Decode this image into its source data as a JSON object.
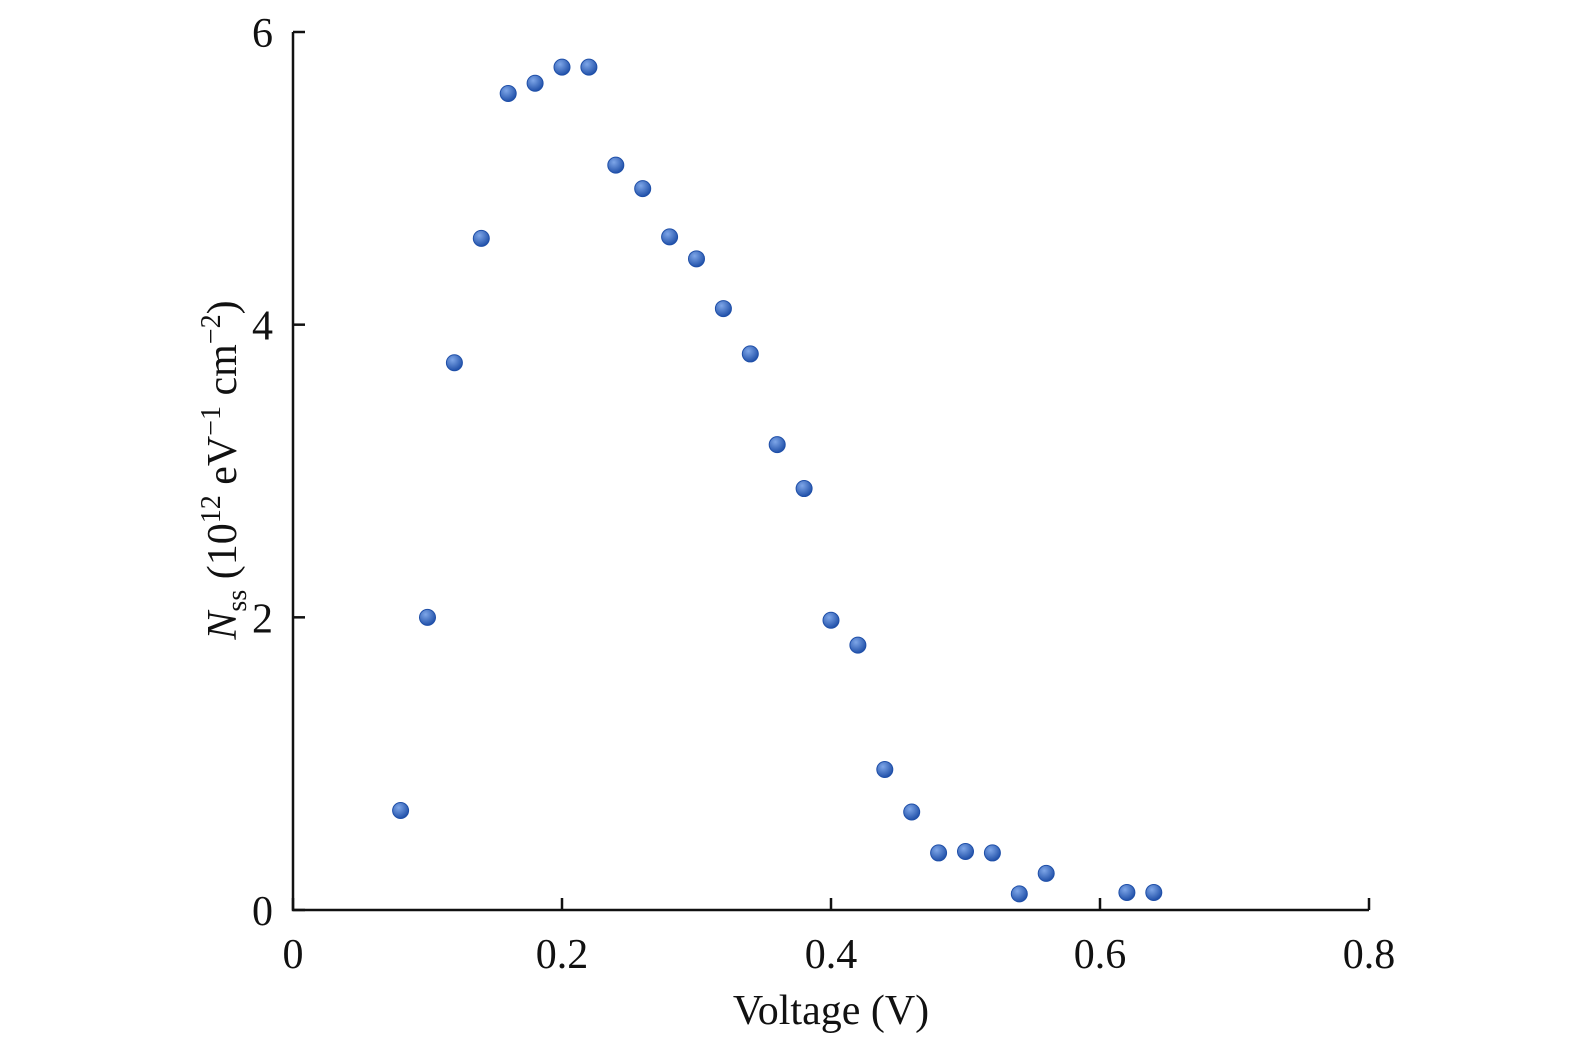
{
  "chart_data": {
    "type": "scatter",
    "xlabel": "Voltage (V)",
    "ylabel": {
      "symbol": "N",
      "subscript": "ss",
      "unit_open": " (10",
      "unit_exp1": "12",
      "unit_mid": " eV",
      "unit_exp2": "−1",
      "unit_mid2": " cm",
      "unit_exp3": "−2",
      "unit_close": ")"
    },
    "xlim": [
      0,
      0.8
    ],
    "ylim": [
      0,
      6
    ],
    "xticks": [
      0,
      0.2,
      0.4,
      0.6,
      0.8
    ],
    "xtick_labels": [
      "0",
      "0.2",
      "0.4",
      "0.6",
      "0.8"
    ],
    "yticks": [
      0,
      2,
      4,
      6
    ],
    "ytick_labels": [
      "0",
      "2",
      "4",
      "6"
    ],
    "grid": false,
    "marker_color": "#1f4fa8",
    "marker_highlight": "#7ea6e8",
    "points": [
      {
        "x": 0.08,
        "y": 0.68
      },
      {
        "x": 0.1,
        "y": 2.0
      },
      {
        "x": 0.12,
        "y": 3.74
      },
      {
        "x": 0.14,
        "y": 4.59
      },
      {
        "x": 0.16,
        "y": 5.58
      },
      {
        "x": 0.18,
        "y": 5.65
      },
      {
        "x": 0.2,
        "y": 5.76
      },
      {
        "x": 0.22,
        "y": 5.76
      },
      {
        "x": 0.24,
        "y": 5.09
      },
      {
        "x": 0.26,
        "y": 4.93
      },
      {
        "x": 0.28,
        "y": 4.6
      },
      {
        "x": 0.3,
        "y": 4.45
      },
      {
        "x": 0.32,
        "y": 4.11
      },
      {
        "x": 0.34,
        "y": 3.8
      },
      {
        "x": 0.36,
        "y": 3.18
      },
      {
        "x": 0.38,
        "y": 2.88
      },
      {
        "x": 0.4,
        "y": 1.98
      },
      {
        "x": 0.42,
        "y": 1.81
      },
      {
        "x": 0.44,
        "y": 0.96
      },
      {
        "x": 0.46,
        "y": 0.67
      },
      {
        "x": 0.48,
        "y": 0.39
      },
      {
        "x": 0.5,
        "y": 0.4
      },
      {
        "x": 0.52,
        "y": 0.39
      },
      {
        "x": 0.54,
        "y": 0.11
      },
      {
        "x": 0.56,
        "y": 0.25
      },
      {
        "x": 0.62,
        "y": 0.12
      },
      {
        "x": 0.64,
        "y": 0.12
      }
    ]
  }
}
